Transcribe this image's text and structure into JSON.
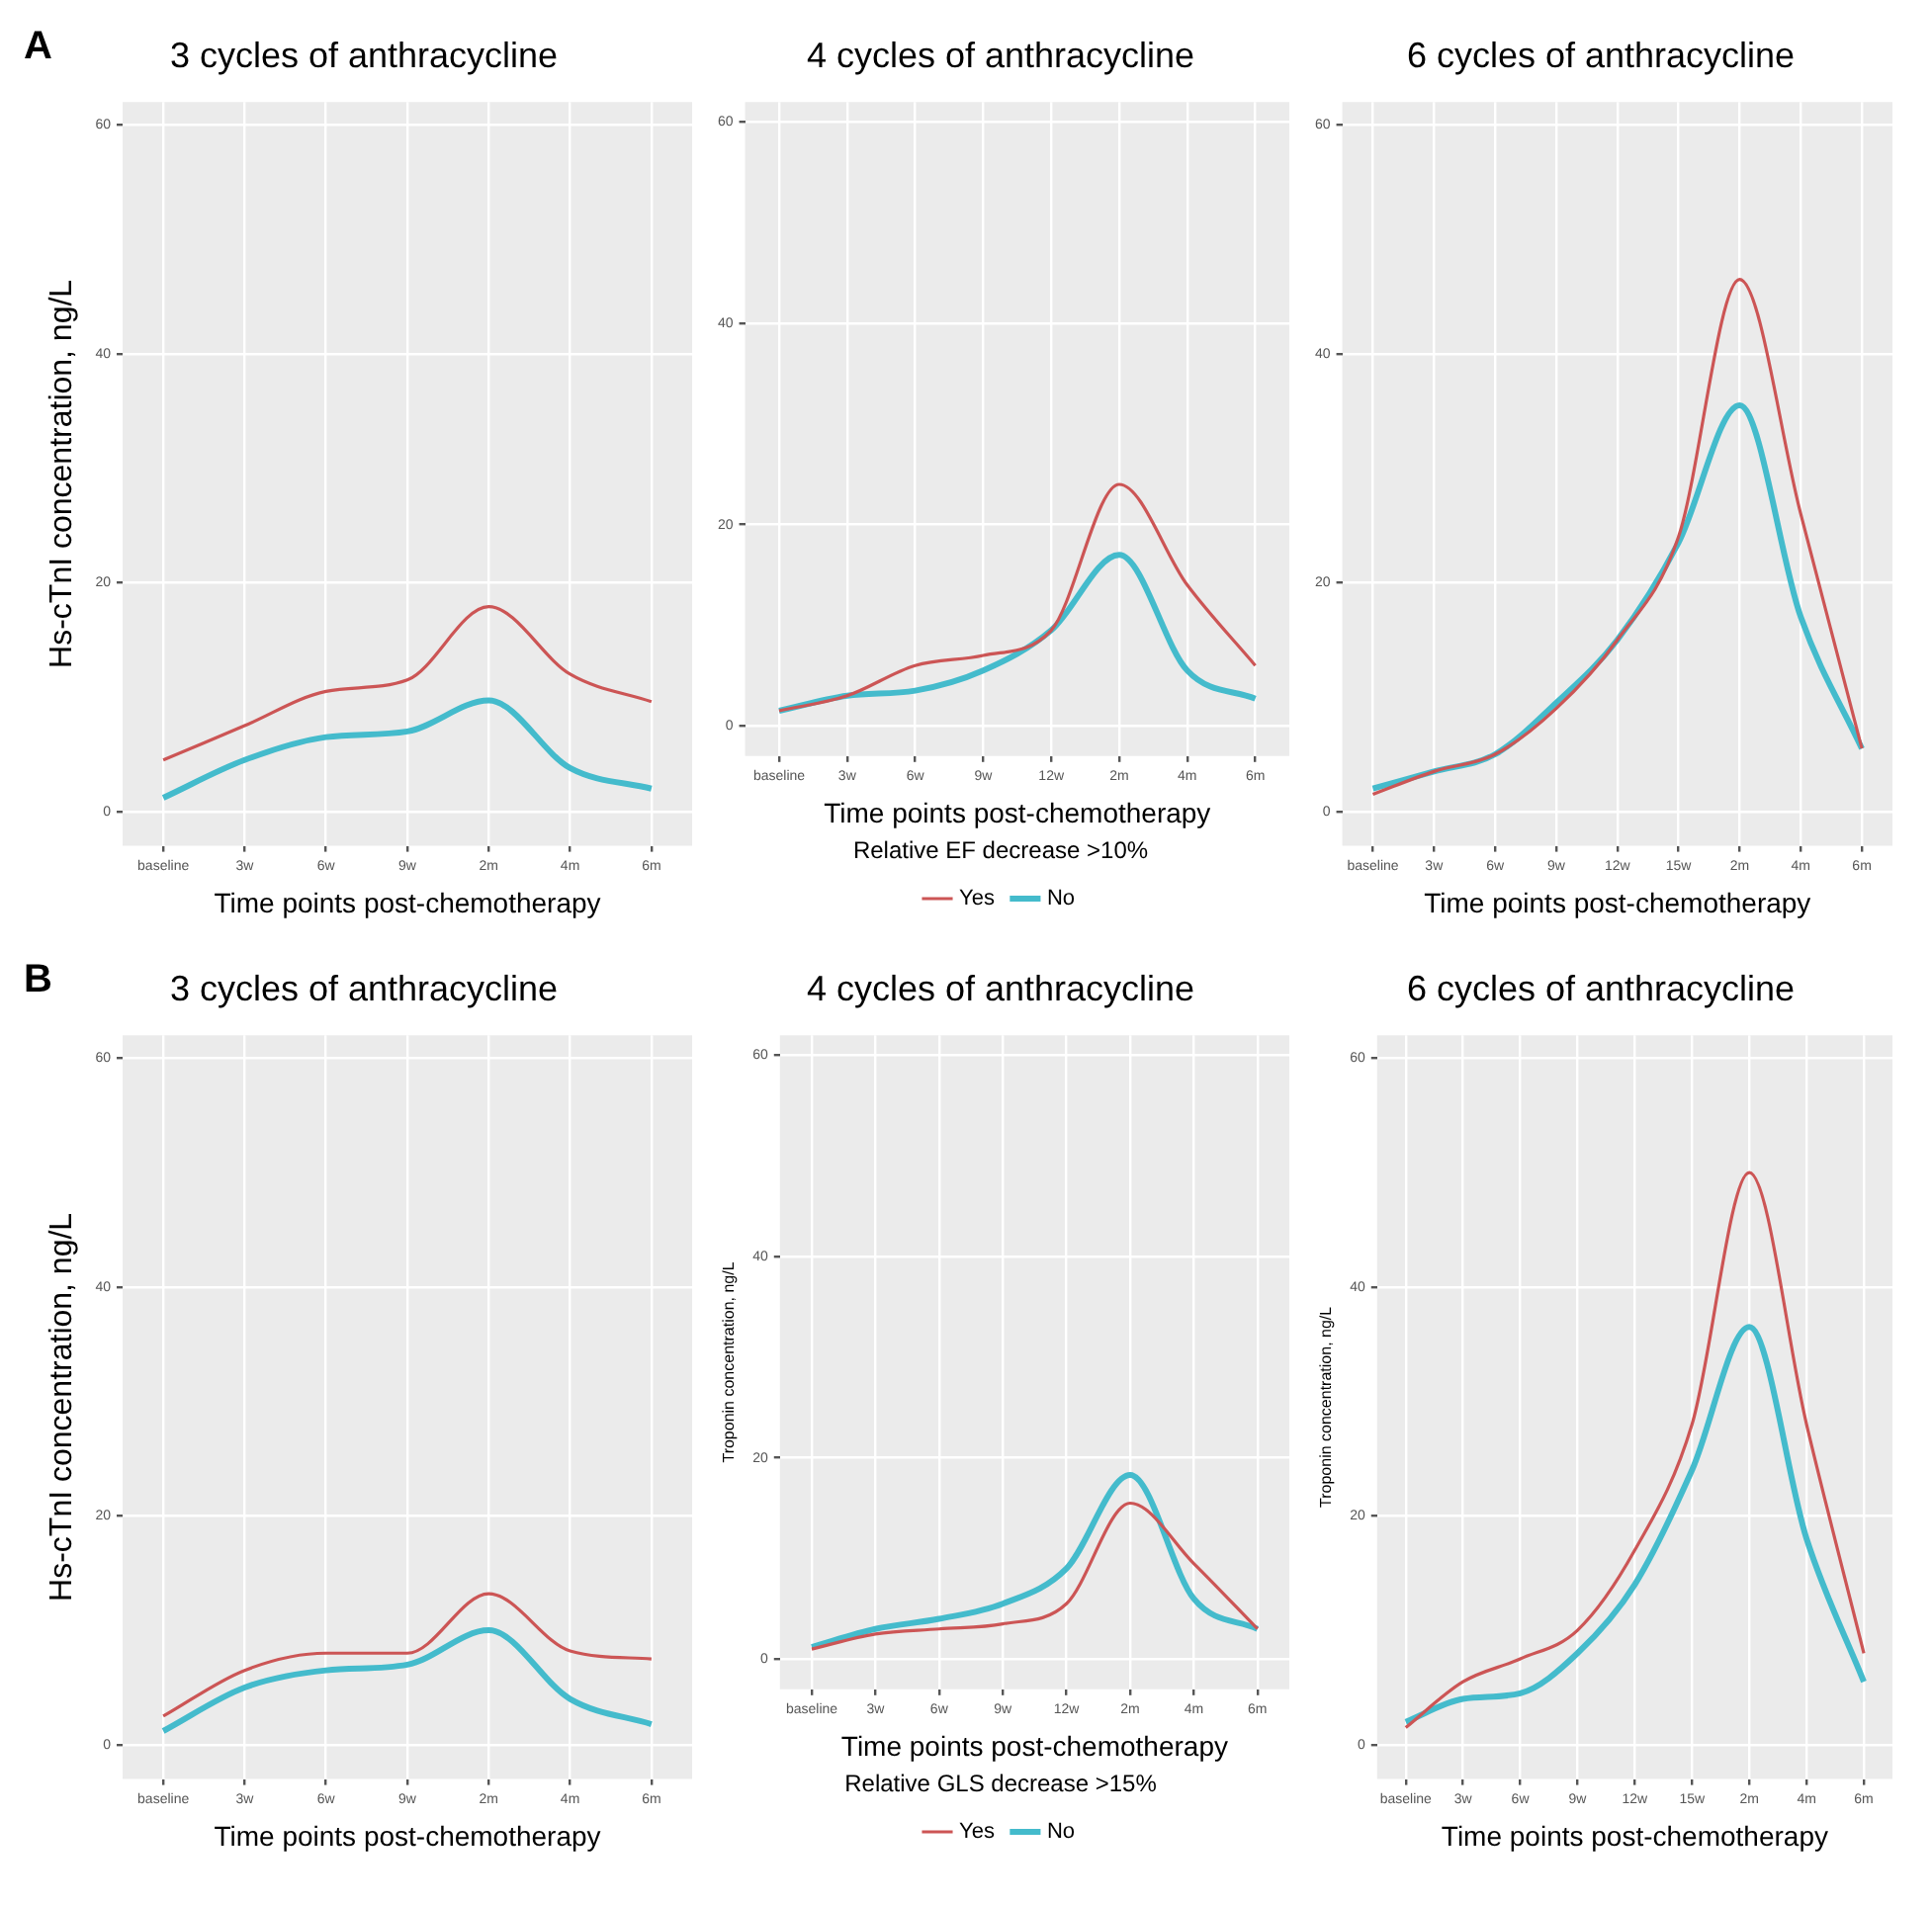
{
  "chart_data": [
    {
      "type": "line",
      "title": "3 cycles of anthracycline",
      "xlabel": "Time points post-chemotherapy",
      "ylabel": "Hs-cTnI concentration, ng/L",
      "annotations": [
        "A"
      ],
      "categories": [
        "baseline",
        "3w",
        "6w",
        "9w",
        "2m",
        "4m",
        "6m"
      ],
      "ylim": [
        -3,
        62
      ],
      "yticks": [
        0,
        20,
        40,
        60
      ],
      "grid": true,
      "marker": "none",
      "line_style": "solid",
      "series": [
        {
          "color": "#cc5555",
          "values": [
            4.5,
            7.5,
            10.5,
            11.5,
            17.9,
            12,
            9.6
          ]
        },
        {
          "color": "#44bbcc",
          "values": [
            1.2,
            4.5,
            6.5,
            7,
            9.7,
            3.8,
            2
          ]
        }
      ]
    },
    {
      "type": "line",
      "title": "4 cycles of anthracycline",
      "xlabel": "Time points post-chemotherapy",
      "legend": "bottom",
      "legend_title": "Relative EF decrease >10%",
      "categories": [
        "baseline",
        "3w",
        "6w",
        "9w",
        "12w",
        "2m",
        "4m",
        "6m"
      ],
      "ylim": [
        -3,
        62
      ],
      "yticks": [
        0,
        20,
        40,
        60
      ],
      "grid": true,
      "marker": "none",
      "line_style": "solid",
      "series": [
        {
          "name": "Yes",
          "color": "#cc5555",
          "values": [
            1.5,
            3,
            6,
            7,
            9.5,
            24,
            14,
            6
          ]
        },
        {
          "name": "No",
          "color": "#44bbcc",
          "values": [
            1.5,
            3,
            3.5,
            5.5,
            9.5,
            17,
            5.5,
            2.7
          ]
        }
      ]
    },
    {
      "type": "line",
      "title": "6 cycles of anthracycline",
      "xlabel": "Time points post-chemotherapy",
      "categories": [
        "baseline",
        "3w",
        "6w",
        "9w",
        "12w",
        "15w",
        "2m",
        "4m",
        "6m"
      ],
      "ylim": [
        -3,
        62
      ],
      "yticks": [
        0,
        20,
        40,
        60
      ],
      "grid": true,
      "marker": "none",
      "line_style": "solid",
      "series": [
        {
          "color": "#cc5555",
          "values": [
            1.5,
            3.5,
            5,
            9,
            15,
            24,
            46.5,
            26,
            5.5
          ]
        },
        {
          "color": "#44bbcc",
          "values": [
            2,
            3.5,
            5,
            9.5,
            15,
            23.5,
            35.5,
            17,
            5.5
          ]
        }
      ]
    },
    {
      "type": "line",
      "title": "3 cycles of anthracycline",
      "xlabel": "Time points post-chemotherapy",
      "ylabel": "Hs-cTnI concentration, ng/L",
      "annotations": [
        "B"
      ],
      "categories": [
        "baseline",
        "3w",
        "6w",
        "9w",
        "2m",
        "4m",
        "6m"
      ],
      "ylim": [
        -3,
        62
      ],
      "yticks": [
        0,
        20,
        40,
        60
      ],
      "grid": true,
      "marker": "none",
      "line_style": "solid",
      "series": [
        {
          "color": "#cc5555",
          "values": [
            2.5,
            6.5,
            8,
            8,
            13.2,
            8.2,
            7.5
          ]
        },
        {
          "color": "#44bbcc",
          "values": [
            1.2,
            5,
            6.5,
            7,
            10,
            4,
            1.8
          ]
        }
      ]
    },
    {
      "type": "line",
      "title": "4 cycles of anthracycline",
      "xlabel": "Time points post-chemotherapy",
      "ylabel": "Troponin concentration, ng/L",
      "legend": "bottom",
      "legend_title": "Relative GLS decrease >15%",
      "categories": [
        "baseline",
        "3w",
        "6w",
        "9w",
        "12w",
        "2m",
        "4m",
        "6m"
      ],
      "ylim": [
        -3,
        62
      ],
      "yticks": [
        0,
        20,
        40,
        60
      ],
      "grid": true,
      "marker": "none",
      "line_style": "solid",
      "series": [
        {
          "name": "Yes",
          "color": "#cc5555",
          "values": [
            1,
            2.5,
            3,
            3.5,
            5.5,
            15.5,
            9.5,
            3
          ]
        },
        {
          "name": "No",
          "color": "#44bbcc",
          "values": [
            1.2,
            3,
            4,
            5.5,
            9,
            18.3,
            6,
            3
          ]
        }
      ]
    },
    {
      "type": "line",
      "title": "6 cycles of anthracycline",
      "xlabel": "Time points post-chemotherapy",
      "ylabel": "Troponin concentration, ng/L",
      "categories": [
        "baseline",
        "3w",
        "6w",
        "9w",
        "12w",
        "15w",
        "2m",
        "4m",
        "6m"
      ],
      "ylim": [
        -3,
        62
      ],
      "yticks": [
        0,
        20,
        40,
        60
      ],
      "grid": true,
      "marker": "none",
      "line_style": "solid",
      "series": [
        {
          "color": "#cc5555",
          "values": [
            1.5,
            5.5,
            7.5,
            10,
            17,
            28,
            50,
            28,
            8
          ]
        },
        {
          "color": "#44bbcc",
          "values": [
            2,
            4,
            4.5,
            8,
            14,
            24,
            36.5,
            18,
            5.5
          ]
        }
      ]
    }
  ]
}
